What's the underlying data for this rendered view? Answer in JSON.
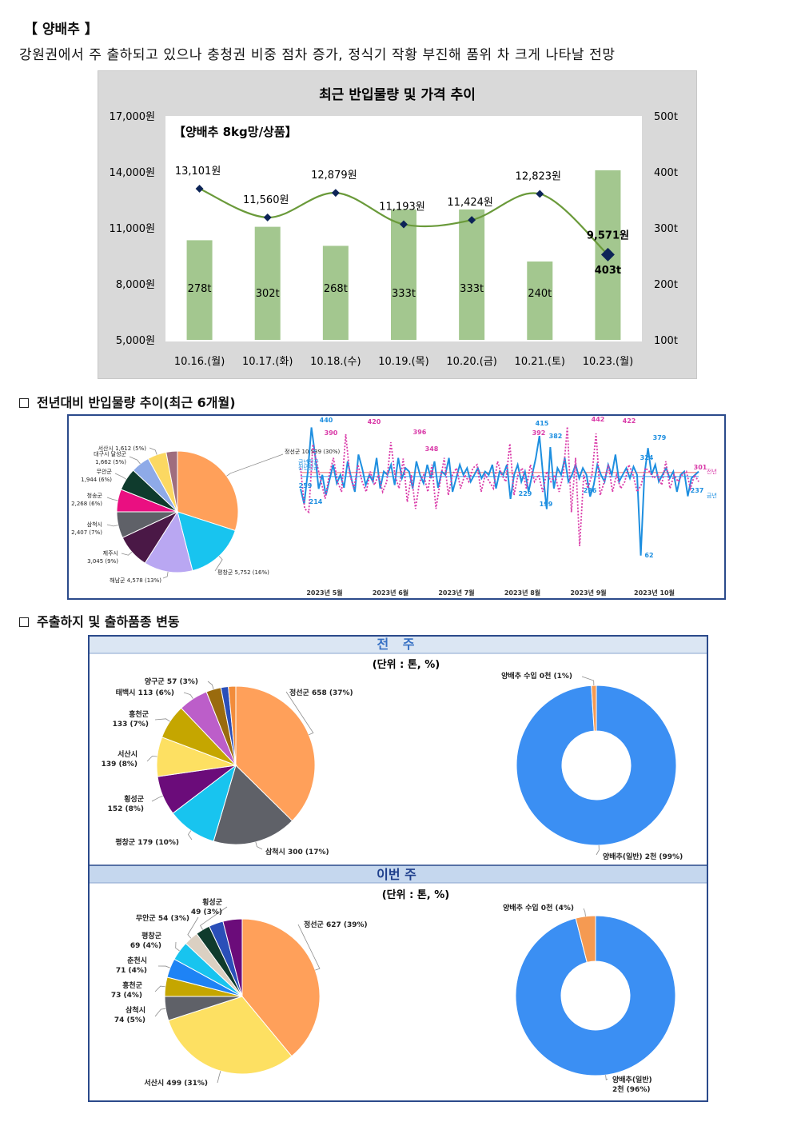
{
  "header": {
    "title": "【 양배추 】",
    "subtitle": "강원권에서 주 출하되고 있으나 충청권 비중 점차 증가, 정식기 작황 부진해 품위 차 크게 나타날 전망"
  },
  "sections": {
    "yoy": "전년대비 반입물량 추이(최근 6개월)",
    "origin": "주출하지 및 출하품종 변동"
  },
  "panels": {
    "last_week": "전 주",
    "this_week": "이번 주",
    "unit": "(단위 : 톤, %)"
  },
  "colors": {
    "bar": "#a3c78f",
    "line": "#6a9a3a",
    "marker": "#0d2457",
    "blue_line": "#1e8fe0",
    "pink_line": "#d93aa8"
  },
  "chart_data": [
    {
      "type": "bar",
      "title": "최근 반입물량 및 가격 추이",
      "annotation": "【양배추 8kg망/상품】",
      "categories": [
        "10.16.(월)",
        "10.17.(화)",
        "10.18.(수)",
        "10.19.(목)",
        "10.20.(금)",
        "10.21.(토)",
        "10.23.(월)"
      ],
      "series": [
        {
          "values": [
            278,
            302,
            268,
            333,
            333,
            240,
            403
          ],
          "labels": [
            "278t",
            "302t",
            "268t",
            "333t",
            "333t",
            "240t",
            "403t"
          ],
          "axis": "right"
        },
        {
          "values": [
            13101,
            11560,
            12879,
            11193,
            11424,
            12823,
            9571
          ],
          "labels": [
            "13,101원",
            "11,560원",
            "12,879원",
            "11,193원",
            "11,424원",
            "12,823원",
            "9,571원"
          ],
          "axis": "left"
        }
      ],
      "y_left_ticks": [
        "5,000원",
        "8,000원",
        "11,000원",
        "14,000원",
        "17,000원"
      ],
      "y_left_range": [
        5000,
        17000
      ],
      "y_right_ticks": [
        "100t",
        "200t",
        "300t",
        "400t",
        "500t"
      ],
      "y_right_range": [
        100,
        500
      ]
    },
    {
      "type": "pie",
      "slices": [
        {
          "label": "정선군 10,539 (30%)",
          "value": 30,
          "color": "#ffa05a"
        },
        {
          "label": "평창군 5,752 (16%)",
          "value": 16,
          "color": "#18c4ef"
        },
        {
          "label": "해남군 4,578 (13%)",
          "value": 13,
          "color": "#b9a7f2"
        },
        {
          "label": "제주시 3,045 (9%)",
          "value": 9,
          "color": "#4a1846"
        },
        {
          "label": "삼척시 2,407 (7%)",
          "value": 7,
          "color": "#5f6168"
        },
        {
          "label": "청송군 2,268 (6%)",
          "value": 6,
          "color": "#ea0f81"
        },
        {
          "label": "무안군 1,944 (6%)",
          "value": 6,
          "color": "#0f3b2d"
        },
        {
          "label": "대구시 달성군 1,662 (5%)",
          "value": 5,
          "color": "#8eaae8"
        },
        {
          "label": "서산시 1,612 (5%)",
          "value": 5,
          "color": "#fbd862"
        },
        {
          "label": "",
          "value": 3,
          "color": "#9f6d7e"
        }
      ]
    },
    {
      "type": "line",
      "x_ticks": [
        "2023년 5월",
        "2023년 6월",
        "2023년 7월",
        "2023년 8월",
        "2023년 9월",
        "2023년 10월"
      ],
      "legend": [
        "전년",
        "금년"
      ],
      "avg_labels": [
        "금년평균",
        "전년평균"
      ],
      "series": [
        {
          "name": "금년",
          "color": "#1e8fe0",
          "values": [
            259,
            214,
            310,
            440,
            360,
            259,
            300,
            240,
            285,
            330,
            275,
            300,
            262,
            340,
            290,
            250,
            360,
            320,
            270,
            300,
            280,
            350,
            260,
            310,
            300,
            330,
            270,
            350,
            290,
            320,
            310,
            260,
            340,
            300,
            275,
            330,
            290,
            340,
            262,
            310,
            300,
            350,
            250,
            290,
            330,
            300,
            320,
            280,
            300,
            320,
            290,
            310,
            300,
            330,
            260,
            310,
            300,
            330,
            229,
            300,
            330,
            280,
            310,
            250,
            300,
            350,
            415,
            300,
            199,
            382,
            260,
            320,
            300,
            350,
            280,
            300,
            330,
            290,
            320,
            300,
            236,
            270,
            330,
            300,
            280,
            330,
            300,
            360,
            280,
            300,
            320,
            290,
            324,
            300,
            62,
            300,
            379,
            300,
            330,
            280,
            300,
            320,
            290,
            310,
            250,
            300,
            310,
            237,
            290,
            300,
            310
          ]
        },
        {
          "name": "전년",
          "color": "#d93aa8",
          "values": [
            320,
            200,
            190,
            390,
            330,
            280,
            230,
            300,
            350,
            280,
            250,
            420,
            300,
            260,
            330,
            280,
            250,
            310,
            270,
            300,
            250,
            280,
            396,
            300,
            260,
            348,
            220,
            300,
            200,
            280,
            300,
            250,
            330,
            200,
            280,
            350,
            240,
            300,
            320,
            260,
            300,
            280,
            320,
            330,
            250,
            300,
            280,
            260,
            340,
            300,
            280,
            392,
            240,
            300,
            320,
            260,
            330,
            280,
            300,
            250,
            310,
            280,
            300,
            250,
            300,
            442,
            190,
            350,
            90,
            300,
            260,
            300,
            422,
            240,
            280,
            330,
            250,
            300,
            260,
            280,
            330,
            300,
            250,
            270,
            320,
            310,
            290,
            300,
            270,
            340,
            260,
            300,
            280,
            301,
            310,
            260,
            300,
            280
          ]
        }
      ],
      "point_labels": [
        "440",
        "390",
        "420",
        "396",
        "348",
        "392",
        "415",
        "382",
        "442",
        "422",
        "379",
        "324",
        "259",
        "214",
        "229",
        "199",
        "236",
        "62",
        "237",
        "301"
      ]
    },
    {
      "type": "pie",
      "slices": [
        {
          "label": "정선군 658 (37%)",
          "value": 37,
          "color": "#ffa05a"
        },
        {
          "label": "삼척시 300 (17%)",
          "value": 17,
          "color": "#5f6168"
        },
        {
          "label": "평창군 179 (10%)",
          "value": 10,
          "color": "#18c4ef"
        },
        {
          "label": "횡성군 152 (8%)",
          "value": 8,
          "color": "#6b0c7a"
        },
        {
          "label": "서산시 139 (8%)",
          "value": 8,
          "color": "#fde062"
        },
        {
          "label": "홍천군 133 (7%)",
          "value": 7,
          "color": "#c5a600"
        },
        {
          "label": "태백시 113 (6%)",
          "value": 6,
          "color": "#bc5ec9"
        },
        {
          "label": "양구군 57 (3%)",
          "value": 3,
          "color": "#9a6b0e"
        },
        {
          "label": "",
          "value": 1.5,
          "color": "#2a4fb8"
        },
        {
          "label": "",
          "value": 1.5,
          "color": "#f28c3a"
        }
      ]
    },
    {
      "type": "pie",
      "donut": true,
      "slices": [
        {
          "label": "양배추(일반) 2천 (99%)",
          "value": 99,
          "color": "#3b8ff3"
        },
        {
          "label": "양배추 수입 0천 (1%)",
          "value": 1,
          "color": "#f59a52"
        }
      ]
    },
    {
      "type": "pie",
      "slices": [
        {
          "label": "정선군 627 (39%)",
          "value": 39,
          "color": "#ffa05a"
        },
        {
          "label": "서산시 499 (31%)",
          "value": 31,
          "color": "#fde062"
        },
        {
          "label": "삼척시 74 (5%)",
          "value": 5,
          "color": "#5f6168"
        },
        {
          "label": "홍천군 73 (4%)",
          "value": 4,
          "color": "#c5a600"
        },
        {
          "label": "춘천시 71 (4%)",
          "value": 4,
          "color": "#1e83f5"
        },
        {
          "label": "평창군 69 (4%)",
          "value": 4,
          "color": "#18c4ef"
        },
        {
          "label": "무안군 54 (3%)",
          "value": 3,
          "color": "#dbd0c2"
        },
        {
          "label": "횡성군 49 (3%)",
          "value": 3,
          "color": "#0f3b2d"
        },
        {
          "label": "",
          "value": 3,
          "color": "#2a4fb8"
        },
        {
          "label": "",
          "value": 4,
          "color": "#6b0c7a"
        }
      ]
    },
    {
      "type": "pie",
      "donut": true,
      "slices": [
        {
          "label": "양배추(일반) 2천 (96%)",
          "value": 96,
          "color": "#3b8ff3"
        },
        {
          "label": "양배추 수입 0천 (4%)",
          "value": 4,
          "color": "#f59a52"
        }
      ]
    }
  ]
}
